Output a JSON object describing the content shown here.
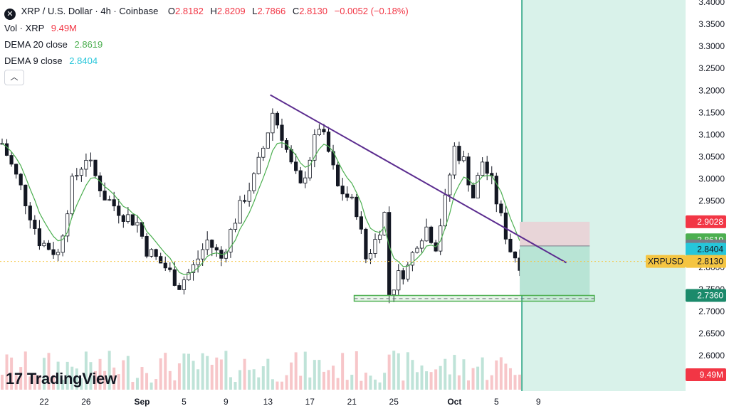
{
  "header": {
    "symbol_icon": "x-close-icon",
    "title": "XRP / U.S. Dollar · 4h · Coinbase",
    "ohlc": {
      "o": "2.8182",
      "h": "2.8209",
      "l": "2.7866",
      "c": "2.8130",
      "change": "−0.0052 (−0.18%)"
    }
  },
  "indicators": [
    {
      "label": "Vol · XRP",
      "value": "9.49M",
      "color": "#f23645"
    },
    {
      "label": "DEMA 20 close",
      "value": "2.8619",
      "color": "#4caf50"
    },
    {
      "label": "DEMA 9 close",
      "value": "2.8404",
      "color": "#26c6da"
    }
  ],
  "collapse_icon": "chevron-up-icon",
  "logo": {
    "mark": "17",
    "text": "TradingView"
  },
  "colors": {
    "up": "#131722",
    "down": "#131722",
    "dema20": "#4caf50",
    "trendline": "#5b2c8f",
    "support": "#4caf50",
    "target_zone": "#d9f2ea",
    "profit": "#b8e4d5",
    "stop": "#e8d5d8",
    "price_line": "#f5c542"
  },
  "chart_data": {
    "type": "candlestick",
    "symbol": "XRPUSD",
    "timeframe": "4h",
    "x_ticks": [
      "22",
      "26",
      "Sep",
      "5",
      "9",
      "13",
      "17",
      "21",
      "25",
      "Oct",
      "5",
      "9"
    ],
    "y_ticks": [
      "3.4000",
      "3.3500",
      "3.3000",
      "3.2500",
      "3.2000",
      "3.1500",
      "3.1000",
      "3.0500",
      "3.0000",
      "2.9500",
      "2.9000",
      "2.8500",
      "2.8000",
      "2.7500",
      "2.7000",
      "2.6500",
      "2.6000"
    ],
    "ylim": [
      2.6,
      3.4
    ],
    "close_path": [
      [
        0,
        3.08
      ],
      [
        4,
        2.98
      ],
      [
        8,
        2.86
      ],
      [
        12,
        2.83
      ],
      [
        15,
        2.99
      ],
      [
        18,
        3.05
      ],
      [
        22,
        2.96
      ],
      [
        26,
        2.92
      ],
      [
        29,
        2.9
      ],
      [
        31,
        2.84
      ],
      [
        35,
        2.8
      ],
      [
        38,
        2.76
      ],
      [
        41,
        2.8
      ],
      [
        44,
        2.86
      ],
      [
        47,
        2.82
      ],
      [
        50,
        2.91
      ],
      [
        52,
        2.96
      ],
      [
        54,
        3.0
      ],
      [
        56,
        3.07
      ],
      [
        58,
        3.15
      ],
      [
        60,
        3.1
      ],
      [
        62,
        3.03
      ],
      [
        64,
        2.98
      ],
      [
        66,
        3.05
      ],
      [
        68,
        3.12
      ],
      [
        70,
        3.06
      ],
      [
        72,
        2.98
      ],
      [
        74,
        2.96
      ],
      [
        76,
        2.93
      ],
      [
        78,
        2.82
      ],
      [
        80,
        2.86
      ],
      [
        82,
        2.92
      ],
      [
        83,
        2.74
      ],
      [
        85,
        2.78
      ],
      [
        87,
        2.8
      ],
      [
        89,
        2.86
      ],
      [
        91,
        2.89
      ],
      [
        93,
        2.85
      ],
      [
        95,
        2.95
      ],
      [
        97,
        3.07
      ],
      [
        99,
        3.04
      ],
      [
        101,
        2.96
      ],
      [
        103,
        3.04
      ],
      [
        105,
        2.99
      ],
      [
        107,
        2.91
      ],
      [
        109,
        2.84
      ],
      [
        111,
        2.81
      ]
    ],
    "last_index": 111,
    "series": [
      {
        "name": "DEMA 20 close",
        "last": 2.8619
      },
      {
        "name": "DEMA 9 close",
        "last": 2.8404
      }
    ],
    "trendline": [
      [
        57.5,
        3.19
      ],
      [
        121,
        2.81
      ]
    ],
    "support_zone": [
      2.723,
      2.736
    ],
    "support_zone_x": [
      75.5,
      127
    ],
    "support_mid": 2.729,
    "position": {
      "stop": 2.9028,
      "entry": 2.848,
      "target": 2.736,
      "x_from": 111,
      "x_to": 126
    },
    "current_price": 2.813,
    "price_labels": [
      {
        "text": "2.9028",
        "value": 2.9028,
        "bg": "#f23645",
        "fg": "#ffffff"
      },
      {
        "text": "2.8619",
        "value": 2.8619,
        "bg": "#4caf50",
        "fg": "#ffffff"
      },
      {
        "text": "2.8480",
        "value": 2.848,
        "bg": "#787b86",
        "fg": "#ffffff"
      },
      {
        "text": "2.8404",
        "value": 2.8404,
        "bg": "#26c6da",
        "fg": "#131722"
      },
      {
        "text": "2.8130",
        "value": 2.813,
        "bg": "#f5c542",
        "fg": "#131722"
      },
      {
        "text": "2.7360",
        "value": 2.736,
        "bg": "#1b8a6b",
        "fg": "#ffffff"
      }
    ],
    "symbol_label": "XRPUSD",
    "volume_label": "9.49M",
    "volume_label_color": "#f23645"
  }
}
